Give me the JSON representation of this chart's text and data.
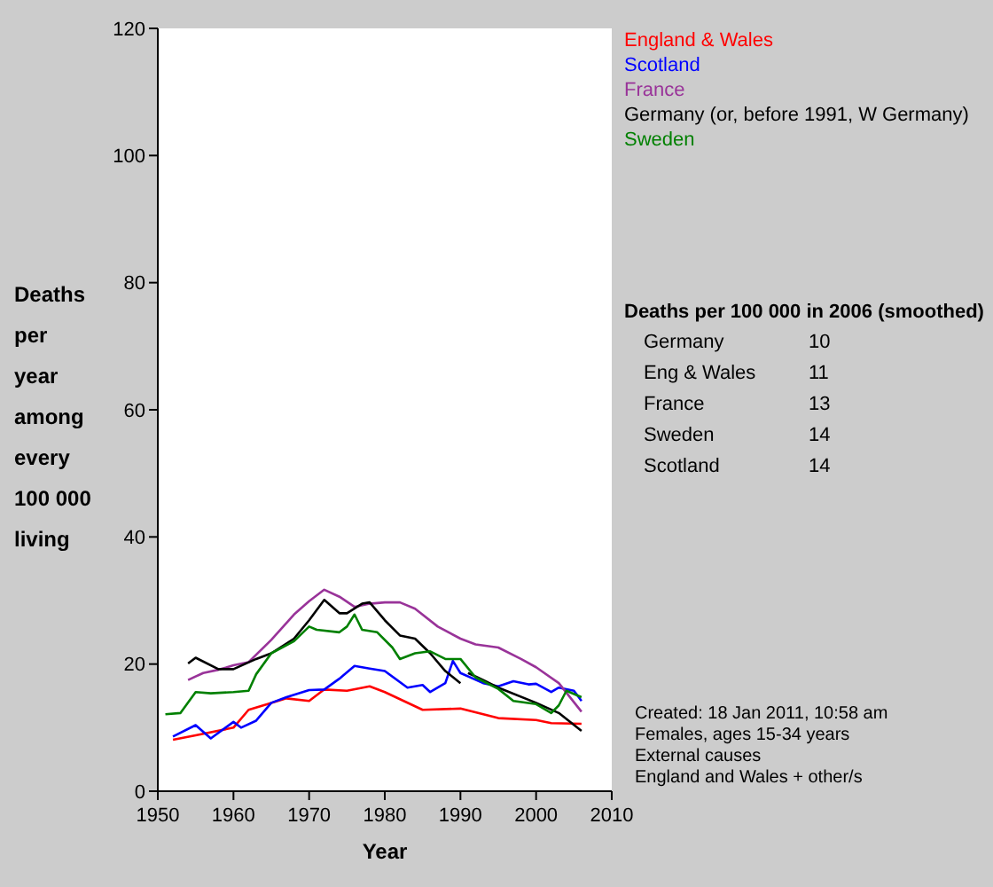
{
  "chart_data": {
    "type": "line",
    "xlabel": "Year",
    "ylabel": "Deaths per year among every 100 000 living",
    "xlim": [
      1950,
      2010
    ],
    "xticks": [
      1950,
      1960,
      1970,
      1980,
      1990,
      2000,
      2010
    ],
    "ylim": [
      0,
      120
    ],
    "yticks": [
      0,
      20,
      40,
      60,
      80,
      100,
      120
    ],
    "grid": false,
    "legend": "right",
    "marker": "none",
    "line_style": "solid",
    "series": [
      {
        "name": "England & Wales",
        "color": "#ff0000",
        "x": [
          1952,
          1955,
          1960,
          1962,
          1965,
          1967,
          1970,
          1972,
          1975,
          1978,
          1980,
          1985,
          1990,
          1995,
          2000,
          2002,
          2006
        ],
        "values": [
          8.1,
          8.8,
          10,
          12.8,
          13.9,
          14.6,
          14.2,
          16,
          15.8,
          16.5,
          15.6,
          12.8,
          13,
          11.5,
          11.2,
          10.7,
          10.6
        ]
      },
      {
        "name": "Scotland",
        "color": "#0000ff",
        "x": [
          1952,
          1955,
          1957,
          1960,
          1961,
          1963,
          1965,
          1967,
          1970,
          1972,
          1974,
          1976,
          1978,
          1980,
          1983,
          1985,
          1986,
          1988,
          1989,
          1990,
          1993,
          1995,
          1997,
          1999,
          2000,
          2002,
          2003,
          2005,
          2006
        ],
        "values": [
          8.6,
          10.4,
          8.3,
          10.9,
          10,
          11.1,
          13.9,
          14.8,
          15.9,
          16,
          17.7,
          19.7,
          19.3,
          18.9,
          16.3,
          16.7,
          15.6,
          17,
          20.5,
          18.6,
          17,
          16.5,
          17.3,
          16.8,
          16.9,
          15.6,
          16.3,
          15.8,
          14.2
        ]
      },
      {
        "name": "France",
        "color": "#993399",
        "x": [
          1954,
          1956,
          1958,
          1960,
          1962,
          1965,
          1968,
          1970,
          1972,
          1974,
          1976,
          1978,
          1980,
          1982,
          1984,
          1987,
          1990,
          1992,
          1995,
          1998,
          2000,
          2003,
          2006
        ],
        "values": [
          17.5,
          18.6,
          19.1,
          19.8,
          20.3,
          23.8,
          27.8,
          29.9,
          31.7,
          30.6,
          29,
          29.5,
          29.7,
          29.7,
          28.7,
          25.9,
          24,
          23.1,
          22.6,
          20.8,
          19.5,
          17,
          12.5
        ]
      },
      {
        "name": "Germany (or, before 1991, W Germany)",
        "color": "#000000",
        "x": [
          1954,
          1955,
          1958,
          1960,
          1963,
          1965,
          1968,
          1970,
          1972,
          1974,
          1975,
          1977,
          1978,
          1980,
          1982,
          1984,
          1986,
          1988,
          1990,
          1990.5,
          1991,
          1993,
          1995,
          2000,
          2003,
          2006
        ],
        "values": [
          20.1,
          21,
          19.2,
          19.2,
          20.8,
          21.7,
          24,
          26.9,
          30.1,
          28,
          28,
          29.5,
          29.7,
          26.9,
          24.5,
          24,
          21.7,
          18.9,
          17,
          null,
          18.6,
          17.5,
          16.3,
          13.9,
          12.3,
          9.5
        ]
      },
      {
        "name": "Sweden",
        "color": "#008000",
        "x": [
          1951,
          1953,
          1955,
          1957,
          1960,
          1962,
          1963,
          1965,
          1968,
          1970,
          1971,
          1974,
          1975,
          1976,
          1977,
          1979,
          1981,
          1982,
          1984,
          1986,
          1988,
          1990,
          1992,
          1995,
          1997,
          2000,
          2002,
          2003,
          2004,
          2006
        ],
        "values": [
          12.1,
          12.3,
          15.6,
          15.4,
          15.6,
          15.8,
          18.4,
          21.7,
          23.6,
          25.9,
          25.4,
          25,
          25.9,
          27.8,
          25.4,
          25,
          22.6,
          20.8,
          21.7,
          22,
          20.8,
          20.8,
          17.9,
          16.1,
          14.2,
          13.7,
          12.3,
          13.5,
          15.8,
          14.8
        ]
      }
    ],
    "annotations": [
      "Deaths per 100 000 in 2006 (smoothed)",
      "Germany",
      "10",
      "Eng & Wales",
      "11",
      "France",
      "13",
      "Sweden",
      "14",
      "Scotland",
      "14",
      "Created: 18 Jan 2011, 10:58 am",
      "Females, ages 15-34 years",
      "External causes",
      "England and Wales + other/s"
    ]
  }
}
